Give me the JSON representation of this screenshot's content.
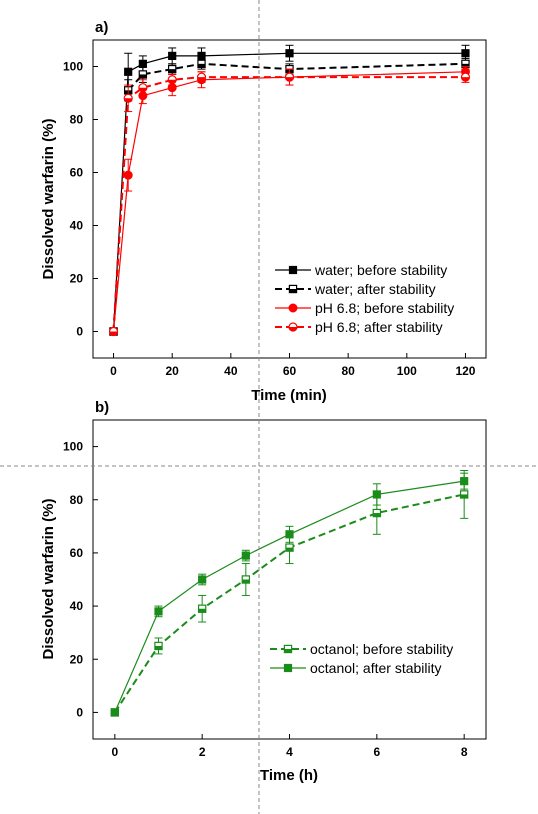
{
  "chart_data": [
    {
      "type": "line",
      "panel_label": "a)",
      "xlabel": "Time (min)",
      "ylabel": "Dissolved warfarin (%)",
      "xlim": [
        -7,
        127
      ],
      "ylim": [
        -10,
        110
      ],
      "xticks": [
        0,
        20,
        40,
        60,
        80,
        100,
        120
      ],
      "yticks": [
        0,
        20,
        40,
        60,
        80,
        100
      ],
      "step_lines": false,
      "legend_position": "bottom-right",
      "colors": {
        "black": "#000000",
        "red": "#ff0000"
      },
      "series": [
        {
          "name": "water; before stability",
          "color": "#000000",
          "dashed": false,
          "marker": "square-filled",
          "x": [
            0,
            5,
            10,
            20,
            30,
            60,
            120
          ],
          "y": [
            0,
            98,
            101,
            104,
            104,
            105,
            105
          ],
          "err": [
            0,
            7,
            3,
            3,
            3,
            3,
            3
          ]
        },
        {
          "name": "water; after stability",
          "color": "#000000",
          "dashed": true,
          "marker": "square-half",
          "x": [
            0,
            5,
            10,
            20,
            30,
            60,
            120
          ],
          "y": [
            0,
            91,
            97,
            99,
            101,
            99,
            101
          ],
          "err": [
            0,
            4,
            3,
            2,
            2,
            2,
            2
          ]
        },
        {
          "name": "pH 6.8; before stability",
          "color": "#ff0000",
          "dashed": false,
          "marker": "circle-filled",
          "x": [
            0,
            5,
            10,
            20,
            30,
            60,
            120
          ],
          "y": [
            0,
            59,
            89,
            92,
            95,
            96,
            98
          ],
          "err": [
            0,
            6,
            3,
            3,
            3,
            3,
            2
          ]
        },
        {
          "name": "pH 6.8; after stability",
          "color": "#ff0000",
          "dashed": true,
          "marker": "circle-half",
          "x": [
            0,
            5,
            10,
            20,
            30,
            60,
            120
          ],
          "y": [
            0,
            88,
            92,
            95,
            96,
            96,
            96
          ],
          "err": [
            0,
            5,
            3,
            2,
            2,
            3,
            2
          ]
        }
      ]
    },
    {
      "type": "line",
      "panel_label": "b)",
      "xlabel": "Time (h)",
      "ylabel": "Dissolved warfarin (%)",
      "xlim": [
        -0.5,
        8.5
      ],
      "ylim": [
        -10,
        110
      ],
      "xticks": [
        0,
        2,
        4,
        6,
        8
      ],
      "yticks": [
        0,
        20,
        40,
        60,
        80,
        100
      ],
      "step_lines": false,
      "legend_position": "bottom-right",
      "colors": {
        "green": "#1a8c1a"
      },
      "series": [
        {
          "name": "octanol; before stability",
          "color": "#1a8c1a",
          "dashed": true,
          "marker": "square-half",
          "x": [
            0,
            1,
            2,
            3,
            4,
            6,
            8
          ],
          "y": [
            0,
            25,
            39,
            50,
            62,
            75,
            82
          ],
          "err": [
            0,
            3,
            5,
            6,
            6,
            8,
            9
          ]
        },
        {
          "name": "octanol; after stability",
          "color": "#1a8c1a",
          "dashed": false,
          "marker": "square-filled",
          "x": [
            0,
            1,
            2,
            3,
            4,
            6,
            8
          ],
          "y": [
            0,
            38,
            50,
            59,
            67,
            82,
            87
          ],
          "err": [
            0,
            2,
            2,
            2,
            3,
            4,
            3
          ]
        }
      ]
    }
  ]
}
